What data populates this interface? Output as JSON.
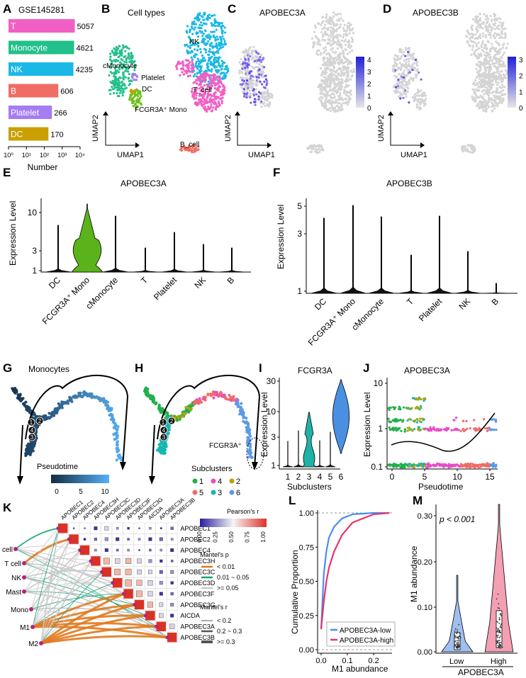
{
  "panels": {
    "A": "A",
    "B": "B",
    "C": "C",
    "D": "D",
    "E": "E",
    "F": "F",
    "G": "G",
    "H": "H",
    "I": "I",
    "J": "J",
    "K": "K",
    "L": "L",
    "M": "M"
  },
  "colors": {
    "T": "#f25fc4",
    "Monocyte": "#22c08a",
    "NK": "#1ab8e6",
    "B": "#ef6d63",
    "Platelet": "#a57cf2",
    "DC": "#c9a000",
    "grey": "#d4d4d4",
    "violet_green": "#5ab31a",
    "violet_teal": "#1fb3a8",
    "violet_blue": "#4a90e2"
  },
  "panelA": {
    "dataset": "GSE145281",
    "xlabel": "Number",
    "ticks": [
      "10⁰",
      "10¹",
      "10²",
      "10³",
      "10⁴"
    ]
  },
  "panelB": {
    "title": "Cell types",
    "labels": {
      "nk": "NK",
      "t": "T_cell",
      "b": "B_cell",
      "cmono": "cMonocyte",
      "platelet": "Platelet",
      "dc": "DC",
      "fcgr": "FCGR3A⁺ Mono"
    },
    "xlabel": "UMAP1",
    "ylabel": "UMAP2"
  },
  "panelC": {
    "title": "APOBEC3A",
    "xlabel": "UMAP1",
    "ylabel": "UMAP2",
    "legend": [
      "4",
      "3",
      "2",
      "1",
      "0"
    ]
  },
  "panelD": {
    "title": "APOBEC3B",
    "xlabel": "UMAP1",
    "ylabel": "UMAP2",
    "legend": [
      "3",
      "2",
      "1",
      "0"
    ]
  },
  "panelE": {
    "title": "APOBEC3A",
    "ylabel": "Expression Level",
    "yticks": [
      "10",
      "3",
      "1"
    ],
    "categories": [
      "DC",
      "FCGR3A⁺ Mono",
      "cMonocyte",
      "T",
      "Platelet",
      "NK",
      "B"
    ]
  },
  "panelF": {
    "title": "APOBEC3B",
    "ylabel": "Expression Level",
    "yticks": [
      "5",
      "3",
      "1"
    ],
    "categories": [
      "DC",
      "FCGR3A⁺ Mono",
      "cMonocyte",
      "T",
      "Platelet",
      "NK",
      "B"
    ]
  },
  "panelG": {
    "title": "Monocytes",
    "legend_title": "Pseudotime",
    "legend_ticks": [
      "0",
      "5",
      "10"
    ],
    "nodes": [
      "1",
      "2",
      "4",
      "3"
    ]
  },
  "panelH": {
    "annot": "FCGR3A⁺",
    "legend_title": "Subclusters",
    "items": [
      "1",
      "2",
      "3",
      "4",
      "5",
      "6"
    ],
    "item_colors": [
      "#22b04c",
      "#b5a300",
      "#17b6b0",
      "#e64ec9",
      "#f06b66",
      "#5b9be8"
    ]
  },
  "panelI": {
    "title": "FCGR3A",
    "ylabel": "Expression Level",
    "xlabel": "Subclusters",
    "yticks": [
      "30",
      "10",
      "3",
      "1"
    ],
    "categories": [
      "1",
      "2",
      "3",
      "4",
      "5",
      "6"
    ]
  },
  "panelJ": {
    "title": "APOBEC3A",
    "ylabel": "Expression Level",
    "xlabel": "Pseudotime",
    "yticks": [
      "10",
      "1",
      "0.1"
    ],
    "xticks": [
      "0",
      "5",
      "10",
      "15"
    ]
  },
  "panelK": {
    "genes": [
      "APOBEC1",
      "APOBEC2",
      "APOBEC4",
      "APOBEC3H",
      "APOBEC3C",
      "APOBEC3D",
      "APOBEC3F",
      "APOBEC3G",
      "AICDA",
      "APOBEC3A",
      "APOBEC3B"
    ],
    "cells": [
      "B cell",
      "T cell",
      "NK",
      "Mast",
      "Mono",
      "M1",
      "M2"
    ],
    "pearson_title": "Pearson's r",
    "pearson_ticks": [
      "0.00",
      "0.25",
      "0.50",
      "0.75",
      "1.00"
    ],
    "mantel_p_title": "Mantel's p",
    "mantel_p_items": [
      "< 0.01",
      "0.01 ~ 0.05",
      ">= 0.05"
    ],
    "mantel_r_title": "Mantel's r",
    "mantel_r_items": [
      "< 0.2",
      "0.2 ~ 0.3",
      ">= 0.3"
    ]
  },
  "panelL": {
    "ylabel": "Cumulative Proportion",
    "xlabel": "M1 abundance",
    "yticks": [
      "1.00",
      "0.75",
      "0.50",
      "0.25",
      "0.00"
    ],
    "xticks": [
      "0.0",
      "0.1",
      "0.2"
    ],
    "series": [
      "APOBEC3A-low",
      "APOBEC3A-high"
    ]
  },
  "panelM": {
    "pval": "p < 0.001",
    "ylabel": "M1 abundance",
    "xlabel": "APOBEC3A",
    "yticks": [
      "0.30",
      "0.20",
      "0.10",
      "0.00"
    ],
    "categories": [
      "Low",
      "High"
    ]
  },
  "chart_data": [
    {
      "type": "bar",
      "title": "GSE145281",
      "categories": [
        "T",
        "Monocyte",
        "NK",
        "B",
        "Platelet",
        "DC"
      ],
      "values": [
        5057,
        4621,
        4235,
        606,
        266,
        170
      ],
      "xlabel": "Number",
      "log_x": true
    },
    {
      "type": "line",
      "title": "",
      "xlabel": "M1 abundance",
      "ylabel": "Cumulative Proportion",
      "series": [
        {
          "name": "APOBEC3A-low",
          "x": [
            0,
            0.01,
            0.02,
            0.03,
            0.05,
            0.08,
            0.12,
            0.2,
            0.26
          ],
          "y": [
            0.15,
            0.55,
            0.72,
            0.82,
            0.9,
            0.96,
            0.99,
            1,
            1
          ]
        },
        {
          "name": "APOBEC3A-high",
          "x": [
            0,
            0.01,
            0.02,
            0.03,
            0.05,
            0.08,
            0.12,
            0.2,
            0.26
          ],
          "y": [
            0.15,
            0.35,
            0.5,
            0.6,
            0.72,
            0.84,
            0.93,
            0.99,
            1
          ]
        }
      ]
    }
  ]
}
